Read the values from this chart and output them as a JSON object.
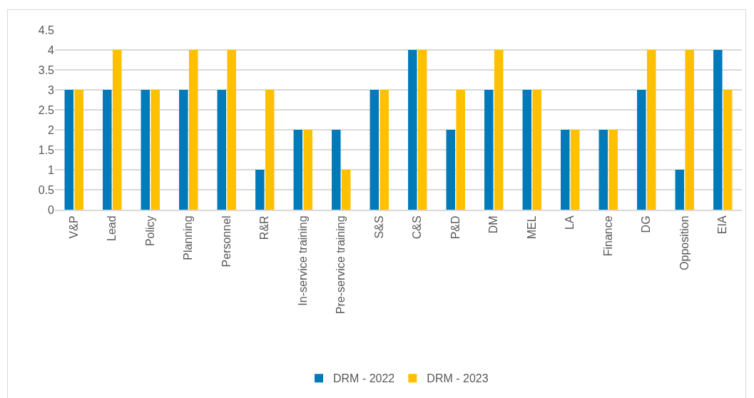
{
  "chart_data": {
    "type": "bar",
    "categories": [
      "V&P",
      "Lead",
      "Policy",
      "Planning",
      "Personnel",
      "R&R",
      "In-service training",
      "Pre-service training",
      "S&S",
      "C&S",
      "P&D",
      "DM",
      "MEL",
      "LA",
      "Finance",
      "DG",
      "Opposition",
      "EIA"
    ],
    "series": [
      {
        "name": "DRM - 2022",
        "color": "#007ab8",
        "values": [
          3,
          3,
          3,
          3,
          3,
          1,
          2,
          2,
          3,
          4,
          2,
          3,
          3,
          2,
          2,
          3,
          1,
          4
        ]
      },
      {
        "name": "DRM - 2023",
        "color": "#ffc000",
        "values": [
          3,
          4,
          3,
          4,
          4,
          3,
          2,
          1,
          3,
          4,
          3,
          4,
          3,
          2,
          2,
          4,
          4,
          3
        ]
      }
    ],
    "ylim": [
      0,
      4.5
    ],
    "yticks": [
      0,
      0.5,
      1,
      1.5,
      2,
      2.5,
      3,
      3.5,
      4,
      4.5
    ],
    "grid": "y",
    "legend": "bottom"
  }
}
